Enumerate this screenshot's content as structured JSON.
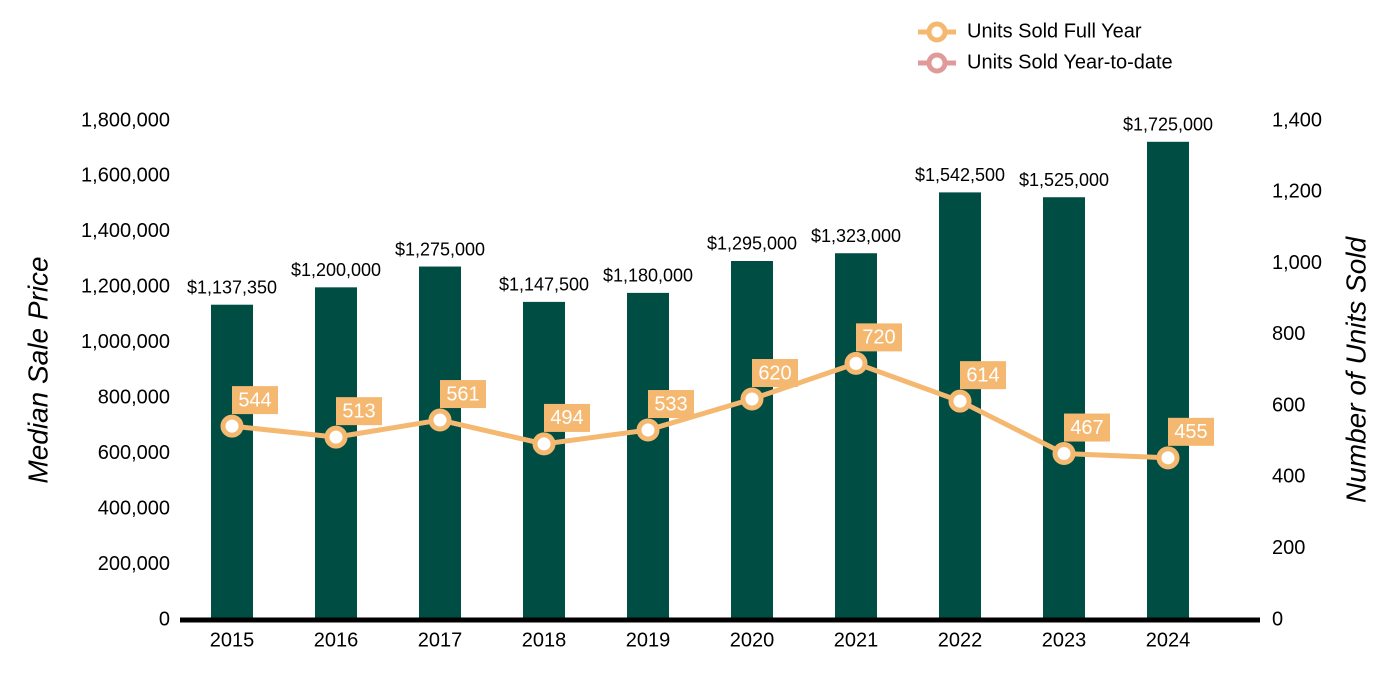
{
  "chart_data": {
    "type": "bar",
    "categories": [
      "2015",
      "2016",
      "2017",
      "2018",
      "2019",
      "2020",
      "2021",
      "2022",
      "2023",
      "2024"
    ],
    "series": [
      {
        "name": "Median Sale Price",
        "type": "bar",
        "color": "#004d44",
        "values": [
          1137350,
          1200000,
          1275000,
          1147500,
          1180000,
          1295000,
          1323000,
          1542500,
          1525000,
          1725000
        ],
        "value_labels": [
          "$1,137,350",
          "$1,200,000",
          "$1,275,000",
          "$1,147,500",
          "$1,180,000",
          "$1,295,000",
          "$1,323,000",
          "$1,542,500",
          "$1,525,000",
          "$1,725,000"
        ]
      },
      {
        "name": "Units Sold Full Year",
        "type": "line",
        "axis": "y2",
        "color": "#f5b870",
        "values": [
          544,
          513,
          561,
          494,
          533,
          620,
          720,
          614,
          467,
          455
        ]
      },
      {
        "name": "Units Sold Year-to-date",
        "type": "line",
        "axis": "y2",
        "color": "#e09a9a",
        "values": [
          null,
          null,
          null,
          null,
          null,
          null,
          null,
          null,
          null,
          null
        ]
      }
    ],
    "y_label": "Median Sale Price",
    "y2_label": "Number of Units Sold",
    "ylim": [
      0,
      1800000
    ],
    "yticks": [
      0,
      {
        "value": 200000,
        "label": "200,000"
      },
      {
        "value": 400000,
        "label": "400,000"
      },
      {
        "value": 600000,
        "label": "600,000"
      },
      {
        "value": 800000,
        "label": "800,000"
      },
      {
        "value": 1000000,
        "label": "1,000,000"
      },
      {
        "value": 1200000,
        "label": "1,200,000"
      },
      {
        "value": 1400000,
        "label": "1,400,000"
      },
      {
        "value": 1600000,
        "label": "1,600,000"
      },
      {
        "value": 1800000,
        "label": "1,800,000"
      }
    ],
    "y2lim": [
      0,
      1400
    ],
    "y2ticks": [
      0,
      200,
      400,
      600,
      800,
      {
        "value": 1000,
        "label": "1,000"
      },
      {
        "value": 1200,
        "label": "1,200"
      },
      {
        "value": 1400,
        "label": "1,400"
      }
    ],
    "legend": "top-right",
    "grid": false
  }
}
